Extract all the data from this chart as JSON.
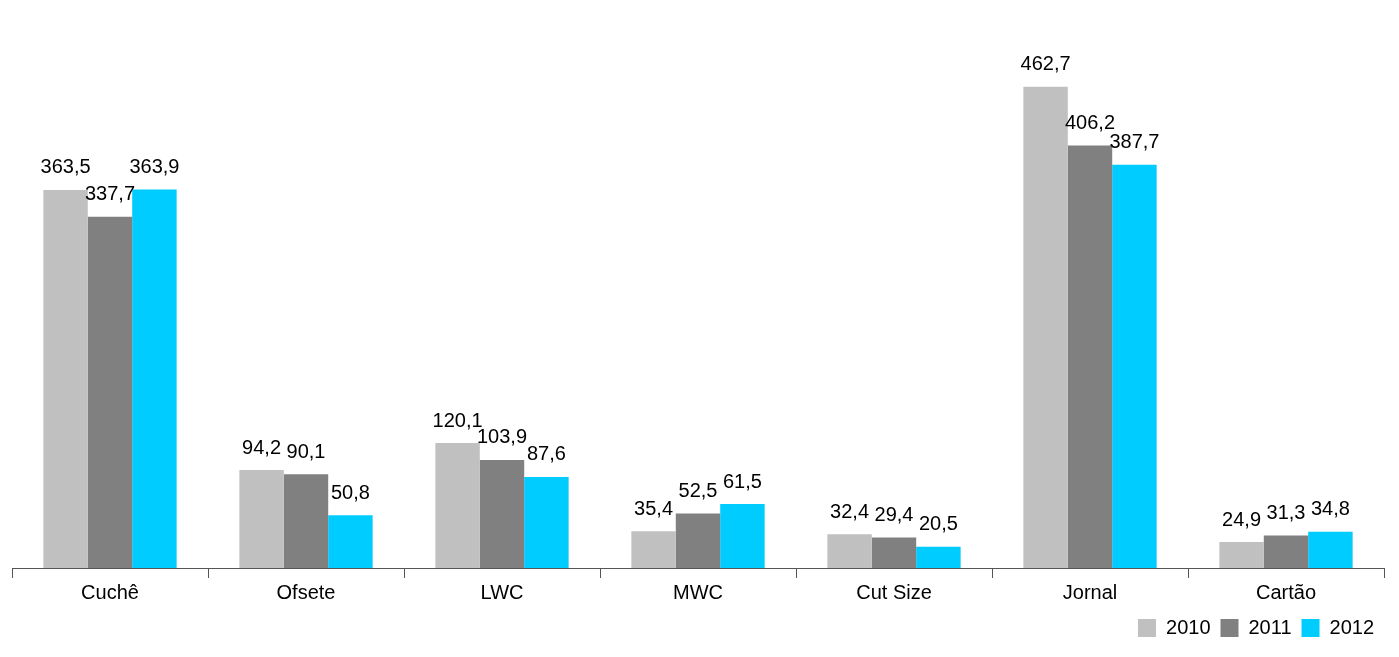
{
  "chart_data": {
    "type": "bar",
    "categories": [
      "Cuchê",
      "Ofsete",
      "LWC",
      "MWC",
      "Cut Size",
      "Jornal",
      "Cartão"
    ],
    "series": [
      {
        "name": "2010",
        "color": "#c0c0c0",
        "values": [
          363.5,
          94.2,
          120.1,
          35.4,
          32.4,
          462.7,
          24.9
        ],
        "value_labels": [
          "363,5",
          "94,2",
          "120,1",
          "35,4",
          "32,4",
          "462,7",
          "24,9"
        ]
      },
      {
        "name": "2011",
        "color": "#808080",
        "values": [
          337.7,
          90.1,
          103.9,
          52.5,
          29.4,
          406.2,
          31.3
        ],
        "value_labels": [
          "337,7",
          "90,1",
          "103,9",
          "52,5",
          "29,4",
          "406,2",
          "31,3"
        ]
      },
      {
        "name": "2012",
        "color": "#00ccff",
        "values": [
          363.9,
          50.8,
          87.6,
          61.5,
          20.5,
          387.7,
          34.8
        ],
        "value_labels": [
          "363,9",
          "50,8",
          "87,6",
          "61,5",
          "20,5",
          "387,7",
          "34,8"
        ]
      }
    ],
    "legend": "bottom right",
    "grid": false
  }
}
